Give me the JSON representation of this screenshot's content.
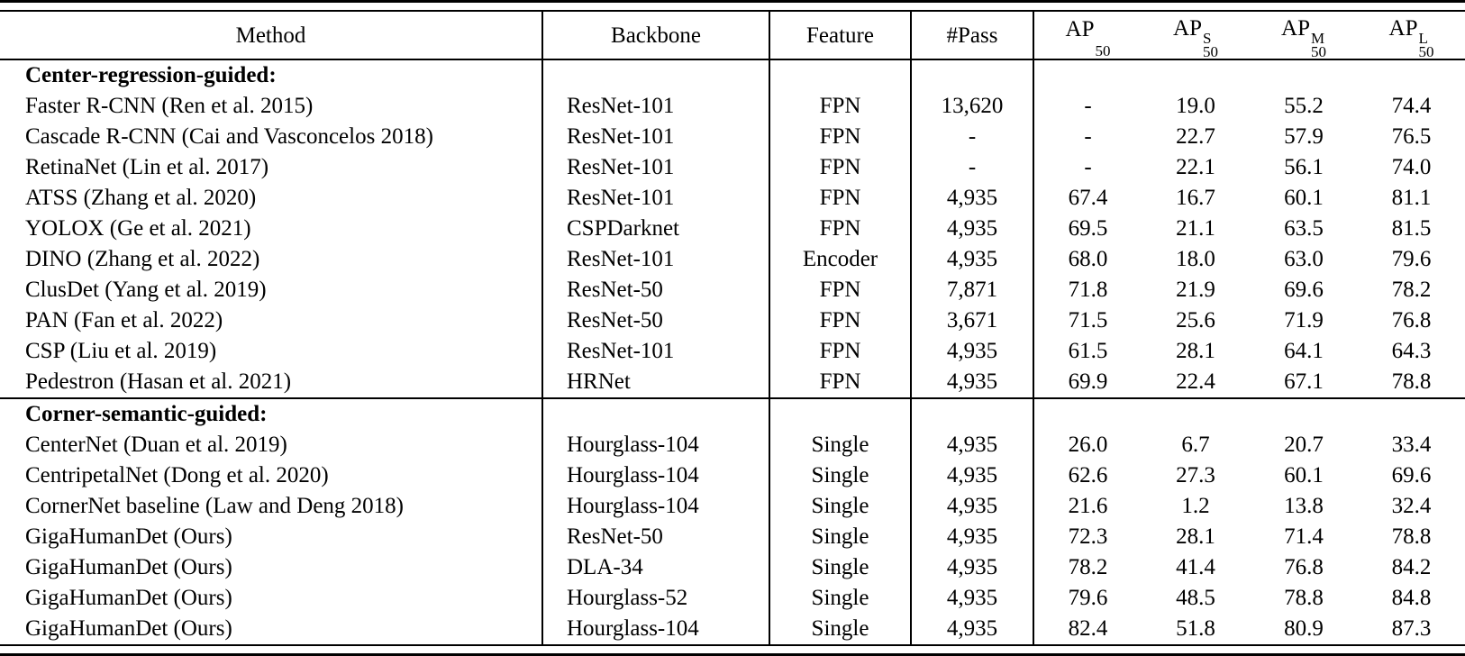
{
  "table": {
    "columns": [
      "Method",
      "Backbone",
      "Feature",
      "#Pass"
    ],
    "ap_headers": [
      {
        "base": "AP",
        "sup": "",
        "sub": "50"
      },
      {
        "base": "AP",
        "sup": "S",
        "sub": "50"
      },
      {
        "base": "AP",
        "sup": "M",
        "sub": "50"
      },
      {
        "base": "AP",
        "sup": "L",
        "sub": "50"
      }
    ],
    "colors": {
      "text": "#000000",
      "background": "#ffffff",
      "rule": "#000000"
    },
    "sections": [
      {
        "header": "Center-regression-guided:",
        "rows": [
          {
            "method": "Faster R-CNN (Ren et al. 2015)",
            "backbone": "ResNet-101",
            "feature": "FPN",
            "pass": "13,620",
            "ap": "-",
            "ap_s": "19.0",
            "ap_m": "55.2",
            "ap_l": "74.4"
          },
          {
            "method": "Cascade R-CNN (Cai and Vasconcelos 2018)",
            "backbone": "ResNet-101",
            "feature": "FPN",
            "pass": "-",
            "ap": "-",
            "ap_s": "22.7",
            "ap_m": "57.9",
            "ap_l": "76.5"
          },
          {
            "method": "RetinaNet (Lin et al. 2017)",
            "backbone": "ResNet-101",
            "feature": "FPN",
            "pass": "-",
            "ap": "-",
            "ap_s": "22.1",
            "ap_m": "56.1",
            "ap_l": "74.0"
          },
          {
            "method": "ATSS (Zhang et al. 2020)",
            "backbone": "ResNet-101",
            "feature": "FPN",
            "pass": "4,935",
            "ap": "67.4",
            "ap_s": "16.7",
            "ap_m": "60.1",
            "ap_l": "81.1"
          },
          {
            "method": "YOLOX (Ge et al. 2021)",
            "backbone": "CSPDarknet",
            "feature": "FPN",
            "pass": "4,935",
            "ap": "69.5",
            "ap_s": "21.1",
            "ap_m": "63.5",
            "ap_l": "81.5"
          },
          {
            "method": "DINO (Zhang et al. 2022)",
            "backbone": "ResNet-101",
            "feature": "Encoder",
            "pass": "4,935",
            "ap": "68.0",
            "ap_s": "18.0",
            "ap_m": "63.0",
            "ap_l": "79.6"
          },
          {
            "method": "ClusDet (Yang et al. 2019)",
            "backbone": "ResNet-50",
            "feature": "FPN",
            "pass": "7,871",
            "ap": "71.8",
            "ap_s": "21.9",
            "ap_m": "69.6",
            "ap_l": "78.2"
          },
          {
            "method": "PAN (Fan et al. 2022)",
            "backbone": "ResNet-50",
            "feature": "FPN",
            "pass": "3,671",
            "ap": "71.5",
            "ap_s": "25.6",
            "ap_m": "71.9",
            "ap_l": "76.8"
          },
          {
            "method": "CSP (Liu et al. 2019)",
            "backbone": "ResNet-101",
            "feature": "FPN",
            "pass": "4,935",
            "ap": "61.5",
            "ap_s": "28.1",
            "ap_m": "64.1",
            "ap_l": "64.3"
          },
          {
            "method": "Pedestron (Hasan et al. 2021)",
            "backbone": "HRNet",
            "feature": "FPN",
            "pass": "4,935",
            "ap": "69.9",
            "ap_s": "22.4",
            "ap_m": "67.1",
            "ap_l": "78.8"
          }
        ]
      },
      {
        "header": "Corner-semantic-guided:",
        "rows": [
          {
            "method": "CenterNet (Duan et al. 2019)",
            "backbone": "Hourglass-104",
            "feature": "Single",
            "pass": "4,935",
            "ap": "26.0",
            "ap_s": "6.7",
            "ap_m": "20.7",
            "ap_l": "33.4"
          },
          {
            "method": "CentripetalNet (Dong et al. 2020)",
            "backbone": "Hourglass-104",
            "feature": "Single",
            "pass": "4,935",
            "ap": "62.6",
            "ap_s": "27.3",
            "ap_m": "60.1",
            "ap_l": "69.6"
          },
          {
            "method": "CornerNet baseline (Law and Deng 2018)",
            "backbone": "Hourglass-104",
            "feature": "Single",
            "pass": "4,935",
            "ap": "21.6",
            "ap_s": "1.2",
            "ap_m": "13.8",
            "ap_l": "32.4"
          },
          {
            "method": "GigaHumanDet (Ours)",
            "backbone": "ResNet-50",
            "feature": "Single",
            "pass": "4,935",
            "ap": "72.3",
            "ap_s": "28.1",
            "ap_m": "71.4",
            "ap_l": "78.8"
          },
          {
            "method": "GigaHumanDet (Ours)",
            "backbone": "DLA-34",
            "feature": "Single",
            "pass": "4,935",
            "ap": "78.2",
            "ap_s": "41.4",
            "ap_m": "76.8",
            "ap_l": "84.2"
          },
          {
            "method": "GigaHumanDet (Ours)",
            "backbone": "Hourglass-52",
            "feature": "Single",
            "pass": "4,935",
            "ap": "79.6",
            "ap_s": "48.5",
            "ap_m": "78.8",
            "ap_l": "84.8"
          },
          {
            "method": "GigaHumanDet (Ours)",
            "backbone": "Hourglass-104",
            "feature": "Single",
            "pass": "4,935",
            "ap": "82.4",
            "ap_s": "51.8",
            "ap_m": "80.9",
            "ap_l": "87.3"
          }
        ]
      }
    ]
  }
}
